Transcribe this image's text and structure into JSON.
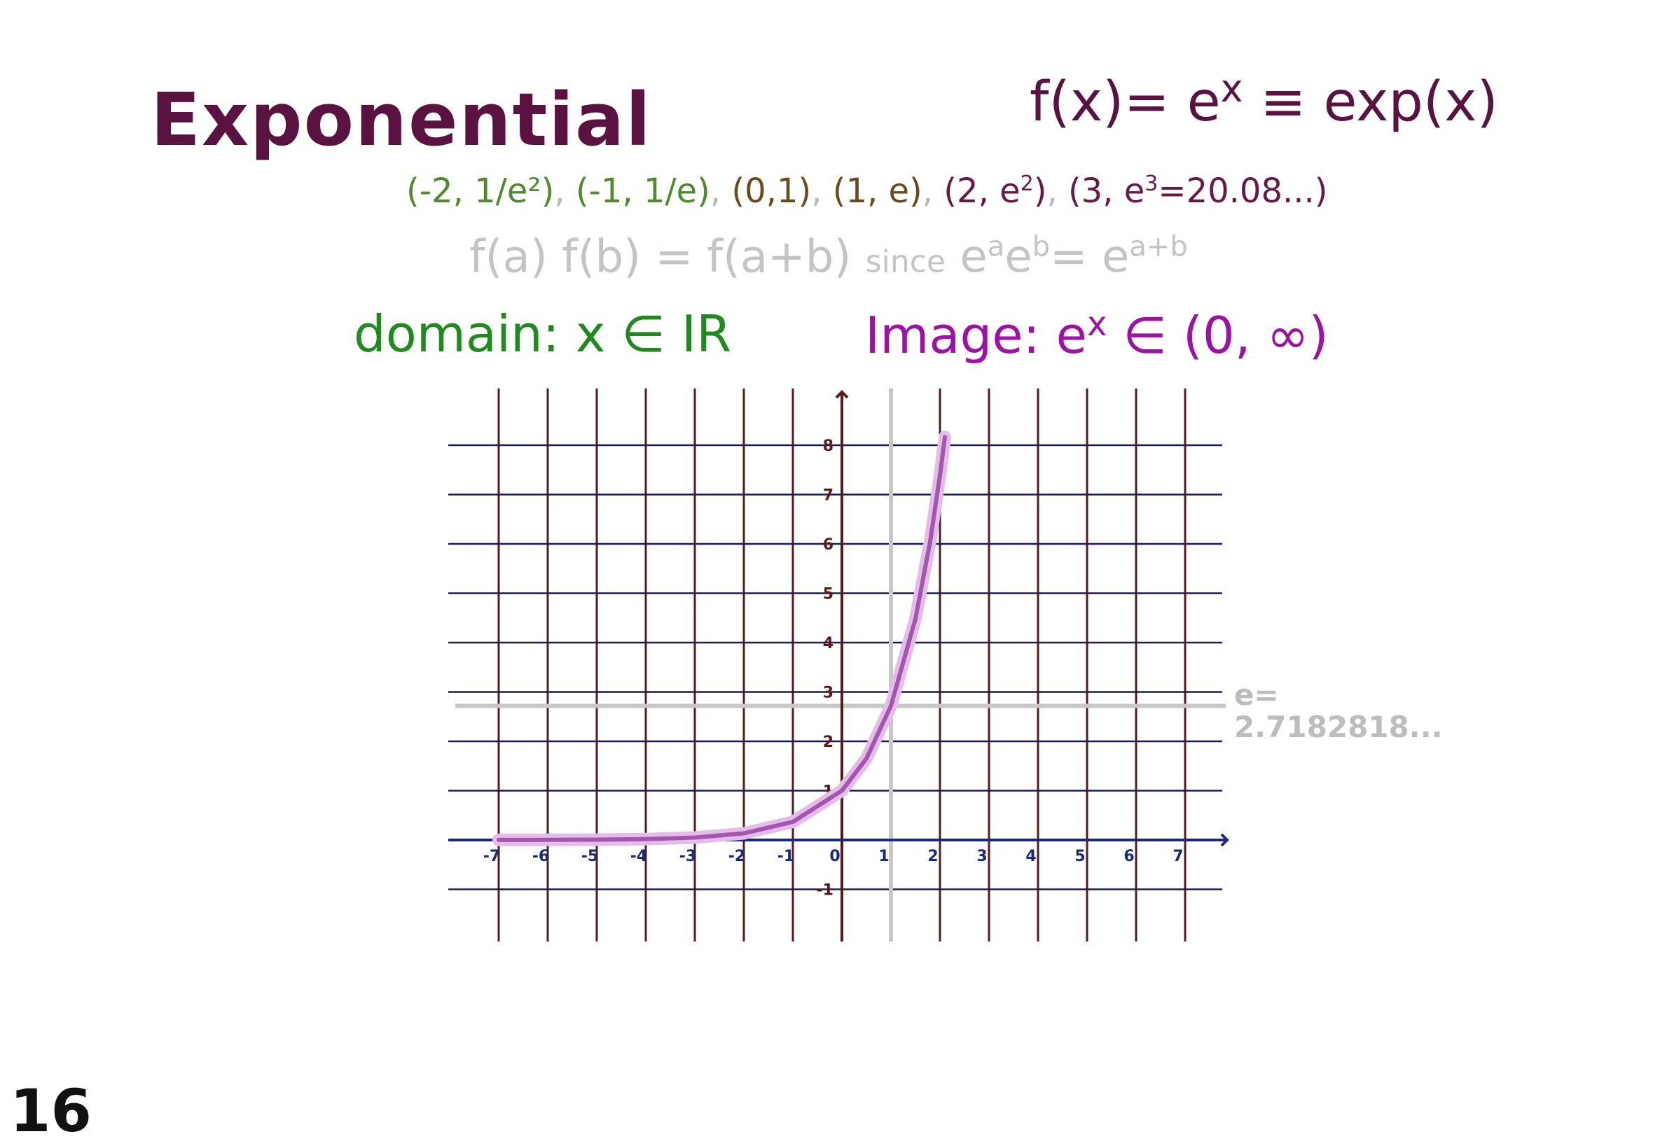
{
  "title": "Exponential",
  "formula": {
    "lhs": "f(x)= e",
    "exp": "x",
    "equiv": "≡",
    "rhs": "exp(x)"
  },
  "points": {
    "p1": "(-2, 1/e²)",
    "p2": "(-1, 1/e)",
    "p3": "(0,1)",
    "p4": "(1, e)",
    "p5_base": "(2, e",
    "p5_exp": "2",
    "p5_close": ")",
    "p6_base": "(3, e",
    "p6_exp": "3",
    "p6_rest": "=20.08...)"
  },
  "property": {
    "lhs": "f(a) f(b) = f(a+b)",
    "since": "since",
    "rhs_a": "e",
    "rhs_a_exp": "a",
    "rhs_b": "e",
    "rhs_b_exp": "b",
    "rhs_eq": "= e",
    "rhs_sum_exp": "a+b"
  },
  "domain": "domain: x ∈ IR",
  "image": {
    "label": "Image: e",
    "exp": "x",
    "set": " ∈ (0, ∞)"
  },
  "e_value": {
    "line1": "e=",
    "line2": "2.7182818..."
  },
  "page_number": "16",
  "colors": {
    "grid_vertical": "#5a1a1a",
    "grid_horizontal": "#1a1a5a",
    "curve": "#b86bc0",
    "e_line": "#c8c8c8",
    "axis_y": "#5a1a1a",
    "axis_x": "#1a2a7a"
  },
  "chart_data": {
    "type": "line",
    "function": "e^x",
    "xlim": [
      -7,
      7
    ],
    "ylim": [
      -1,
      8
    ],
    "x_ticks": [
      "-7",
      "-6",
      "-5",
      "-4",
      "-3",
      "-2",
      "-1",
      "0",
      "1",
      "2",
      "3",
      "4",
      "5",
      "6",
      "7"
    ],
    "y_ticks": [
      "-1",
      "1",
      "2",
      "3",
      "4",
      "5",
      "6",
      "7",
      "8"
    ],
    "x": [
      -7,
      -6,
      -5,
      -4,
      -3,
      -2,
      -1,
      0,
      0.5,
      1,
      1.5,
      1.8,
      2,
      2.1
    ],
    "y": [
      0.0009,
      0.0025,
      0.0067,
      0.018,
      0.05,
      0.135,
      0.368,
      1,
      1.649,
      2.718,
      4.482,
      6.05,
      7.389,
      8.166
    ],
    "reference_lines": [
      {
        "axis": "y",
        "value": 2.718
      },
      {
        "axis": "x",
        "value": 1
      }
    ],
    "grid": true
  }
}
